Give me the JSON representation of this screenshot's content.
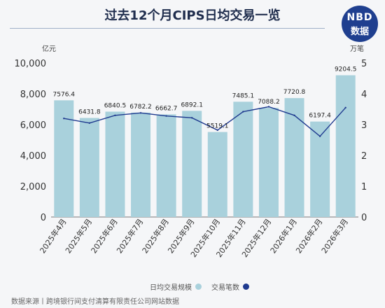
{
  "title": "过去12个月CIPS日均交易一览",
  "logo": {
    "line1": "NBD",
    "line2": "数据"
  },
  "source": "数据来源丨跨境银行间支付清算有限责任公司网站数据",
  "colors": {
    "bar": "#a9d1dc",
    "line": "#1f3a8f",
    "title": "#1f2d4d"
  },
  "chart_data": {
    "type": "bar",
    "categories": [
      "2025年4月",
      "2025年5月",
      "2025年6月",
      "2025年7月",
      "2025年8月",
      "2025年9月",
      "2025年10月",
      "2025年11月",
      "2025年12月",
      "2026年1月",
      "2026年2月",
      "2026年3月"
    ],
    "series": [
      {
        "name": "日均交易规模",
        "type": "bar",
        "axis": "left",
        "values": [
          7576.4,
          6431.8,
          6840.5,
          6782.2,
          6662.7,
          6892.1,
          5519.1,
          7485.1,
          7088.2,
          7720.8,
          6197.4,
          9204.5
        ]
      },
      {
        "name": "交易笔数",
        "type": "line",
        "axis": "right",
        "values": [
          3.2,
          3.05,
          3.3,
          3.38,
          3.28,
          3.22,
          2.82,
          3.42,
          3.58,
          3.3,
          2.62,
          3.55
        ]
      }
    ],
    "y_left": {
      "unit": "亿元",
      "range": [
        0,
        10000
      ],
      "ticks": [
        "0",
        "2,000",
        "4,000",
        "6,000",
        "8,000",
        "10,000"
      ]
    },
    "y_right": {
      "unit": "万笔",
      "range": [
        0,
        5
      ],
      "ticks": [
        "0",
        "1",
        "2",
        "3",
        "4",
        "5"
      ]
    },
    "grid": false,
    "legend": "bottom"
  }
}
